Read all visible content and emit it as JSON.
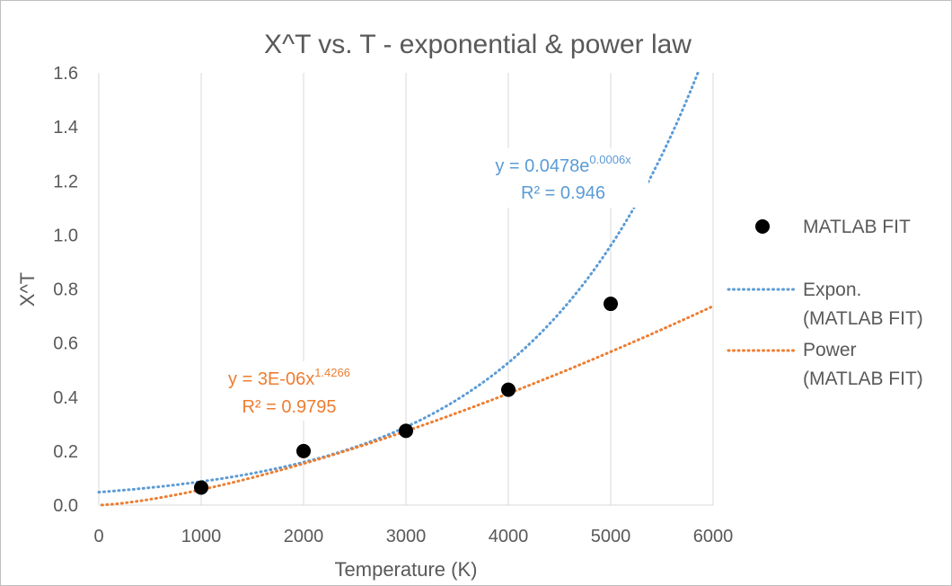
{
  "chart_data": {
    "type": "scatter",
    "title": "X^T vs. T - exponential & power law",
    "xlabel": "Temperature  (K)",
    "ylabel": "X^T",
    "xlim": [
      0,
      6000
    ],
    "ylim": [
      0,
      1.6
    ],
    "x_ticks": [
      0,
      1000,
      2000,
      3000,
      4000,
      5000,
      6000
    ],
    "y_ticks": [
      "0.0",
      "0.2",
      "0.4",
      "0.6",
      "0.8",
      "1.0",
      "1.2",
      "1.4",
      "1.6"
    ],
    "grid": "vertical",
    "legend_position": "right",
    "series": [
      {
        "name": "MATLAB FIT",
        "kind": "points",
        "color": "#000000",
        "x": [
          1000,
          2000,
          3000,
          4000,
          5000
        ],
        "y": [
          0.065,
          0.2,
          0.275,
          0.427,
          0.745
        ]
      }
    ],
    "trendlines": [
      {
        "name": "Expon.",
        "name_line2": "(MATLAB FIT)",
        "fit": "exponential",
        "a": 0.0478,
        "b": 0.0006,
        "color": "#5B9BD5",
        "equation_prefix": "y = 0.0478e",
        "equation_exponent": "0.0006x",
        "r2_label": "R² = 0.946"
      },
      {
        "name": "Power",
        "name_line2": "(MATLAB FIT)",
        "fit": "power",
        "a": 3e-06,
        "b": 1.4266,
        "color": "#ED7D31",
        "equation_prefix": "y = 3E-06x",
        "equation_exponent": "1.4266",
        "r2_label": "R² = 0.9795"
      }
    ]
  }
}
